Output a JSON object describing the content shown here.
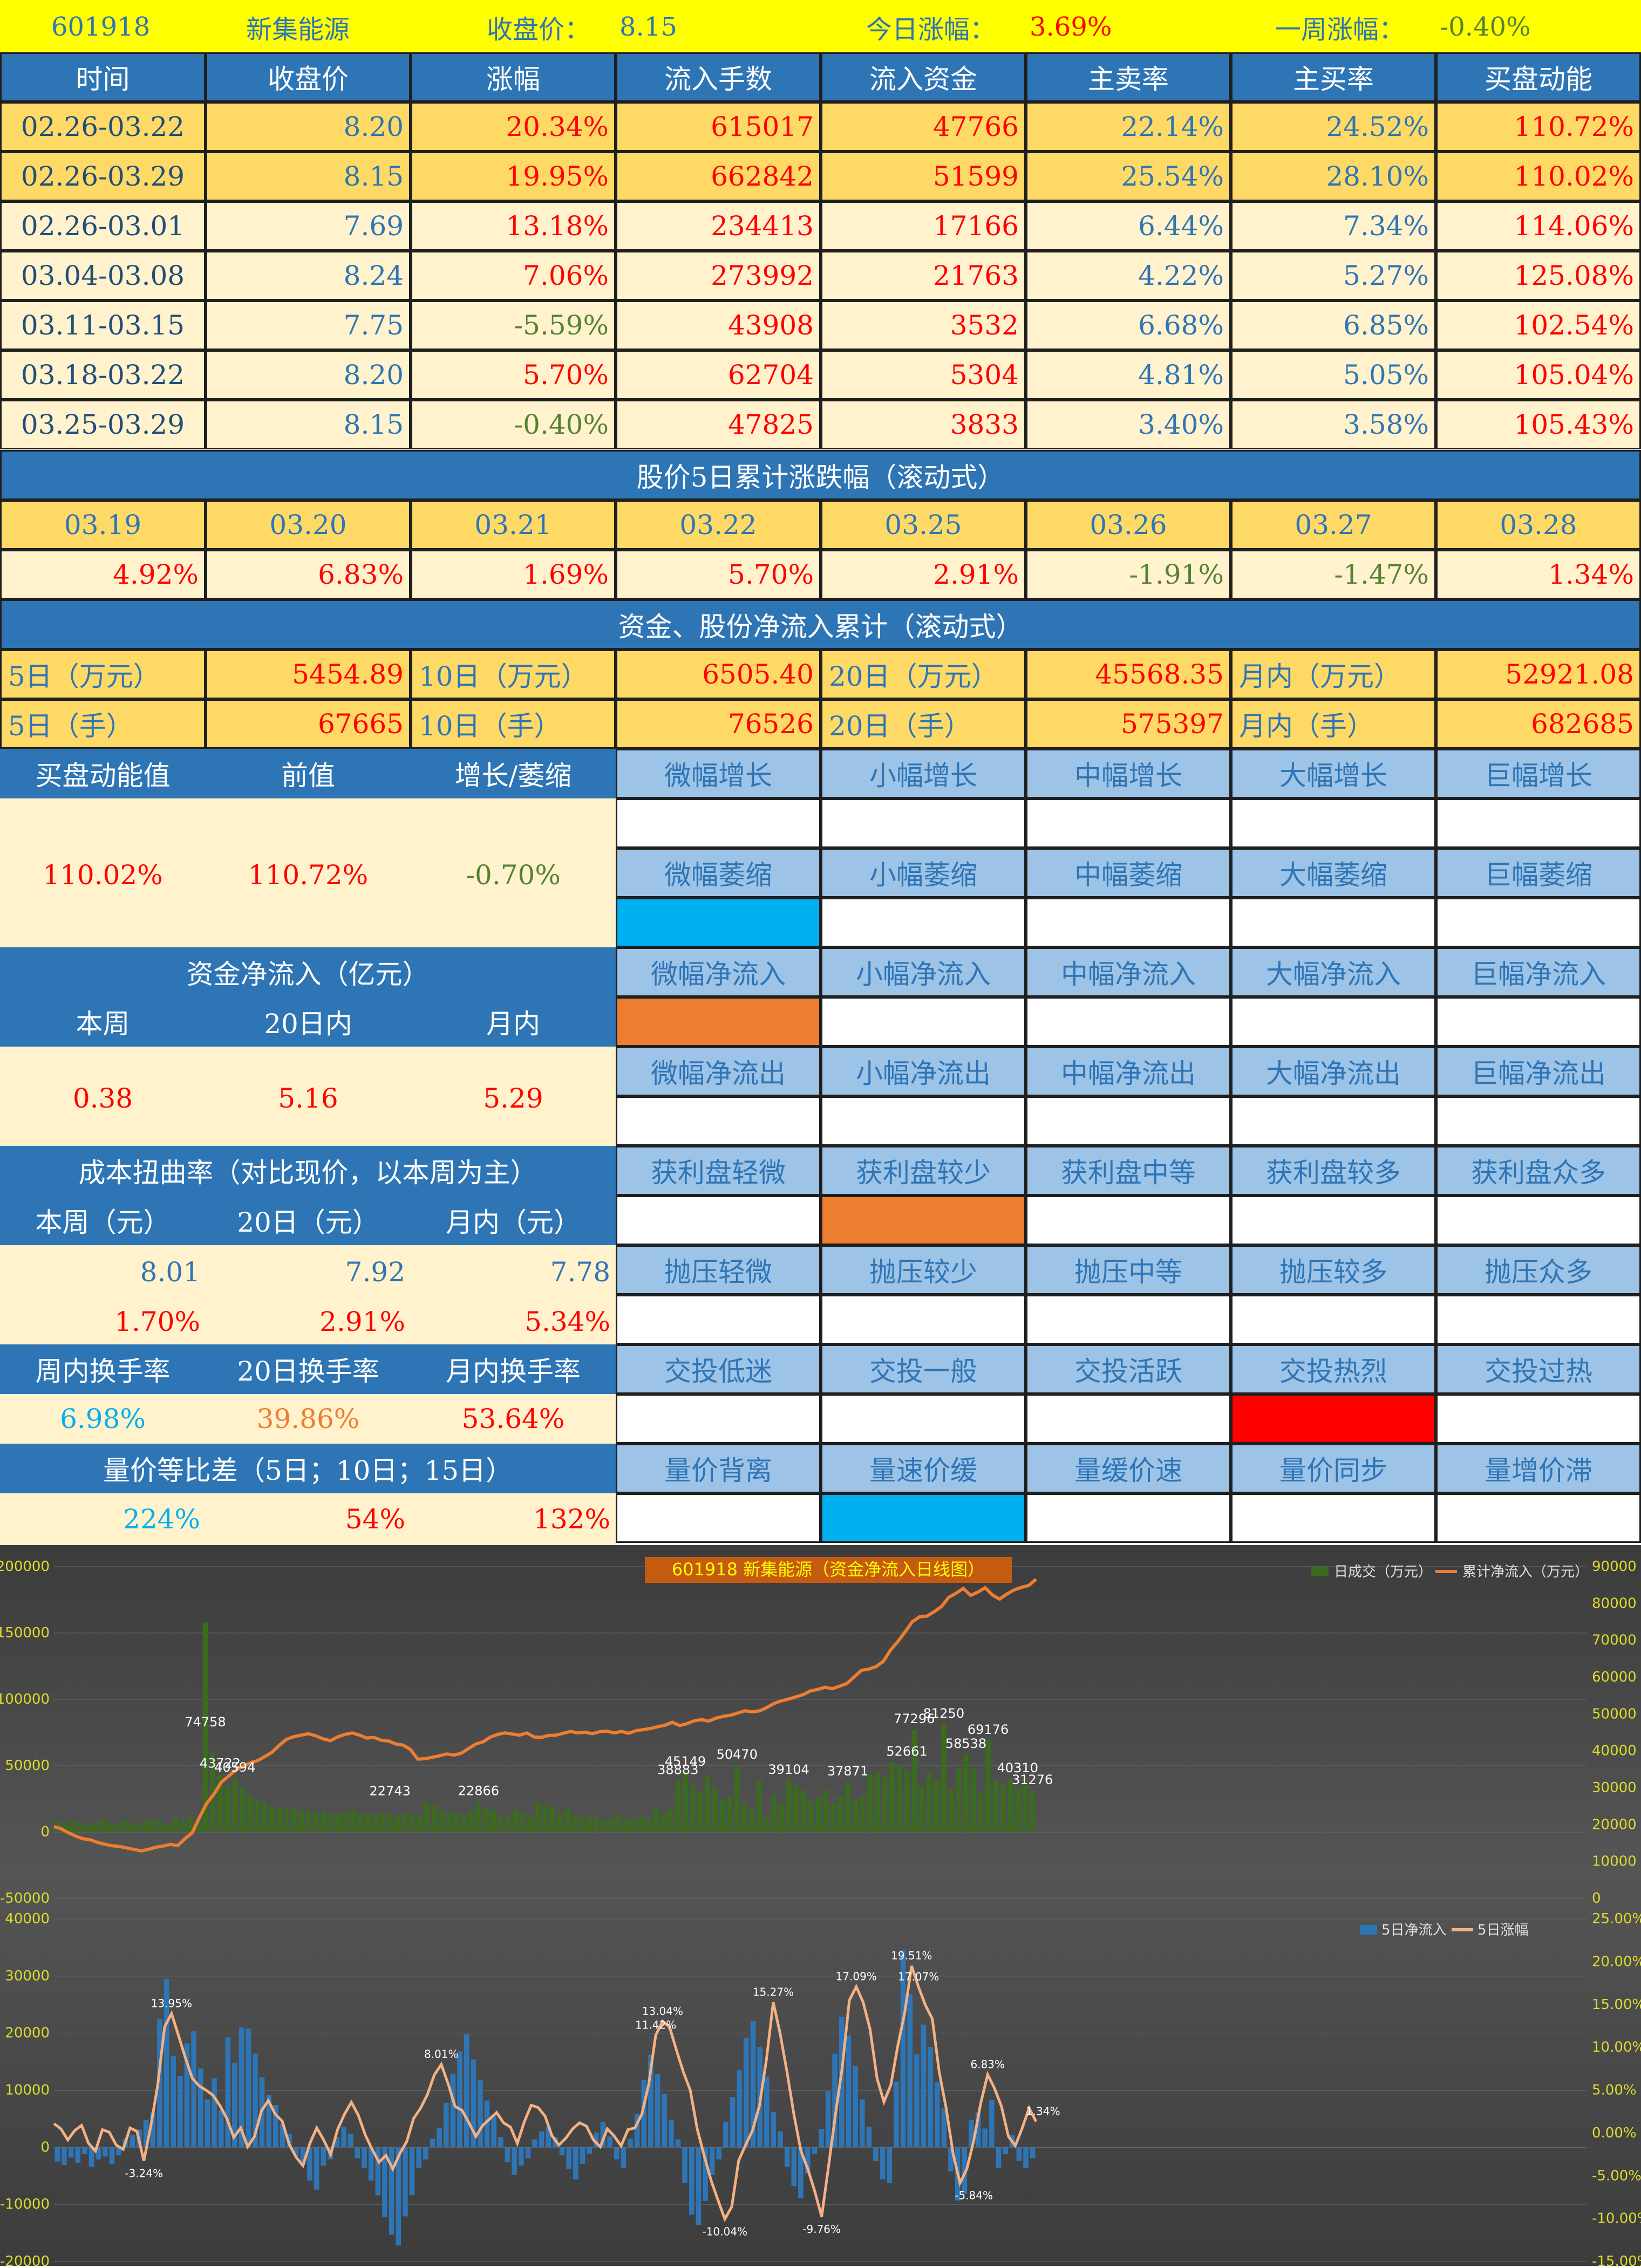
{
  "header": {
    "code": "601918",
    "name": "新集能源",
    "close_label": "收盘价：",
    "close_value": "8.15",
    "today_label": "今日涨幅：",
    "today_value": "3.69%",
    "week_label": "一周涨幅：",
    "week_value": "-0.40%"
  },
  "main_table": {
    "columns": [
      "时间",
      "收盘价",
      "涨幅",
      "流入手数",
      "流入资金",
      "主卖率",
      "主买率",
      "买盘动能"
    ],
    "rows": [
      [
        "02.26-03.22",
        "8.20",
        "20.34%",
        "615017",
        "47766",
        "22.14%",
        "24.52%",
        "110.72%"
      ],
      [
        "02.26-03.29",
        "8.15",
        "19.95%",
        "662842",
        "51599",
        "25.54%",
        "28.10%",
        "110.02%"
      ],
      [
        "02.26-03.01",
        "7.69",
        "13.18%",
        "234413",
        "17166",
        "6.44%",
        "7.34%",
        "114.06%"
      ],
      [
        "03.04-03.08",
        "8.24",
        "7.06%",
        "273992",
        "21763",
        "4.22%",
        "5.27%",
        "125.08%"
      ],
      [
        "03.11-03.15",
        "7.75",
        "-5.59%",
        "43908",
        "3532",
        "6.68%",
        "6.85%",
        "102.54%"
      ],
      [
        "03.18-03.22",
        "8.20",
        "5.70%",
        "62704",
        "5304",
        "4.81%",
        "5.05%",
        "105.04%"
      ],
      [
        "03.25-03.29",
        "8.15",
        "-0.40%",
        "47825",
        "3833",
        "3.40%",
        "3.58%",
        "105.43%"
      ]
    ]
  },
  "rolling5": {
    "title": "股价5日累计涨跌幅（滚动式）",
    "dates": [
      "03.19",
      "03.20",
      "03.21",
      "03.22",
      "03.25",
      "03.26",
      "03.27",
      "03.28"
    ],
    "values": [
      "4.92%",
      "6.83%",
      "1.69%",
      "5.70%",
      "2.91%",
      "-1.91%",
      "-1.47%",
      "1.34%"
    ]
  },
  "netflow": {
    "title": "资金、股份净流入累计（滚动式）",
    "row1": [
      "5日（万元）",
      "5454.89",
      "10日（万元）",
      "6505.40",
      "20日（万元）",
      "45568.35",
      "月内（万元）",
      "52921.08"
    ],
    "row2": [
      "5日（手）",
      "67665",
      "10日（手）",
      "76526",
      "20日（手）",
      "575397",
      "月内（手）",
      "682685"
    ]
  },
  "buy_energy": {
    "headers": [
      "买盘动能值",
      "前值",
      "增长/萎缩"
    ],
    "values": [
      "110.02%",
      "110.72%",
      "-0.70%"
    ],
    "grow_labels": [
      "微幅增长",
      "小幅增长",
      "中幅增长",
      "大幅增长",
      "巨幅增长"
    ],
    "shrink_labels": [
      "微幅萎缩",
      "小幅萎缩",
      "中幅萎缩",
      "大幅萎缩",
      "巨幅萎缩"
    ]
  },
  "fund_netflow": {
    "title": "资金净流入（亿元）",
    "headers": [
      "本周",
      "20日内",
      "月内"
    ],
    "values": [
      "0.38",
      "5.16",
      "5.29"
    ],
    "in_labels": [
      "微幅净流入",
      "小幅净流入",
      "中幅净流入",
      "大幅净流入",
      "巨幅净流入"
    ],
    "out_labels": [
      "微幅净流出",
      "小幅净流出",
      "中幅净流出",
      "大幅净流出",
      "巨幅净流出"
    ]
  },
  "cost": {
    "title": "成本扭曲率（对比现价，以本周为主）",
    "headers": [
      "本周（元）",
      "20日（元）",
      "月内（元）"
    ],
    "prices": [
      "8.01",
      "7.92",
      "7.78"
    ],
    "rates": [
      "1.70%",
      "2.91%",
      "5.34%"
    ],
    "profit_labels": [
      "获利盘轻微",
      "获利盘较少",
      "获利盘中等",
      "获利盘较多",
      "获利盘众多"
    ],
    "pressure_labels": [
      "抛压轻微",
      "抛压较少",
      "抛压中等",
      "抛压较多",
      "抛压众多"
    ]
  },
  "turnover": {
    "headers": [
      "周内换手率",
      "20日换手率",
      "月内换手率"
    ],
    "values": [
      "6.98%",
      "39.86%",
      "53.64%"
    ],
    "activity_labels": [
      "交投低迷",
      "交投一般",
      "交投活跃",
      "交投热烈",
      "交投过热"
    ]
  },
  "volprice": {
    "title": "量价等比差（5日；10日；15日）",
    "values": [
      "224%",
      "54%",
      "132%"
    ],
    "state_labels": [
      "量价背离",
      "量速价缓",
      "量缓价速",
      "量价同步",
      "量增价滞"
    ]
  },
  "indicators": {
    "shrink_active": 0,
    "inflow_active": 0,
    "profit_active": 1,
    "activity_active": 3,
    "volprice_active": 1,
    "colors": {
      "blue": "#00b0f0",
      "orange": "#ed7d31",
      "red": "#ff0000"
    }
  },
  "chart_data": [
    {
      "type": "bar",
      "title": "601918 新集能源（资金净流入日线图）",
      "legend": [
        "日成交（万元）",
        "累计净流入（万元）"
      ],
      "legend_position": "top-right",
      "y_left_ticks": [
        "200000",
        "150000",
        "100000",
        "50000",
        "0",
        "-50000"
      ],
      "y_right_ticks": [
        "90000",
        "80000",
        "70000",
        "60000",
        "50000",
        "40000",
        "30000",
        "20000",
        "10000",
        "0"
      ],
      "ylim_left": [
        -50000,
        200000
      ],
      "ylim_right": [
        0,
        90000
      ],
      "series": [
        {
          "name": "日成交（万元）",
          "values": [
            8200,
            6900,
            9100,
            7600,
            5800,
            6700,
            9800,
            7200,
            6400,
            8800,
            7300,
            6100,
            8900,
            9500,
            7700,
            6200,
            10800,
            9400,
            12300,
            9900,
            158000,
            60000,
            43722,
            35425,
            40594,
            33468,
            27850,
            24300,
            22881,
            19550,
            18200,
            16900,
            17800,
            15900,
            16300,
            14800,
            15600,
            14200,
            13900,
            15400,
            16800,
            14100,
            13500,
            12900,
            14400,
            13800,
            12600,
            14900,
            13100,
            12800,
            22743,
            19800,
            16400,
            15100,
            14600,
            12262,
            15800,
            22866,
            18200,
            16500,
            12400,
            10700,
            16700,
            14200,
            11900,
            22548,
            20100,
            18600,
            14500,
            17200,
            12800,
            11700,
            10900,
            11500,
            9200,
            10100,
            12400,
            9800,
            10500,
            11200,
            9600,
            18600,
            14146,
            17300,
            38883,
            45149,
            35794,
            29958,
            42391,
            33116,
            23868,
            26861,
            50470,
            20974,
            16800,
            39083,
            12073,
            27673,
            21300,
            39104,
            35491,
            31553,
            23100,
            26595,
            31888,
            21667,
            27055,
            37871,
            24549,
            27058,
            43270,
            44854,
            41603,
            52661,
            50400,
            46300,
            77296,
            34508,
            44364,
            40200,
            81250,
            31983,
            48028,
            58538,
            48187,
            29767,
            69176,
            39400,
            36200,
            40310,
            33506,
            40267,
            31276
          ]
        },
        {
          "name": "累计净流入（万元）",
          "values": [
            19500,
            18900,
            17800,
            16900,
            16200,
            15900,
            15200,
            14700,
            14300,
            14100,
            13700,
            13300,
            12900,
            13300,
            13900,
            14200,
            14700,
            14300,
            16200,
            17800,
            22000,
            25800,
            28300,
            31500,
            33200,
            34800,
            35900,
            36800,
            37400,
            38500,
            39700,
            41600,
            43200,
            43900,
            44300,
            44700,
            44100,
            43300,
            42800,
            43800,
            44500,
            44900,
            44300,
            43500,
            43700,
            42900,
            42700,
            41900,
            41600,
            40400,
            37800,
            37900,
            38300,
            38700,
            39200,
            38900,
            39400,
            40700,
            41900,
            42500,
            43800,
            44500,
            44900,
            44600,
            44300,
            44900,
            43800,
            43700,
            44200,
            44300,
            44800,
            45300,
            44900,
            45100,
            44700,
            45200,
            45400,
            44900,
            45300,
            44800,
            45500,
            45800,
            46100,
            46600,
            47000,
            47800,
            46900,
            47400,
            48200,
            48500,
            48100,
            48900,
            49400,
            49700,
            50300,
            50900,
            50600,
            50900,
            51800,
            52900,
            53600,
            54100,
            54700,
            55300,
            56300,
            56700,
            57300,
            56900,
            57600,
            58300,
            60100,
            61900,
            62200,
            62900,
            64300,
            67400,
            69700,
            72300,
            75100,
            76400,
            76600,
            77800,
            79200,
            81700,
            82800,
            84100,
            82200,
            83100,
            84300,
            82300,
            81200,
            82600,
            83700,
            84400,
            84900,
            86600
          ]
        }
      ]
    },
    {
      "type": "bar",
      "title": "",
      "legend": [
        "5日净流入",
        "5日涨幅"
      ],
      "legend_position": "top-right",
      "y_left_ticks": [
        "40000",
        "30000",
        "20000",
        "10000",
        "0",
        "-10000",
        "-20000"
      ],
      "y_right_ticks": [
        "25.00%",
        "20.00%",
        "15.00%",
        "10.00%",
        "5.00%",
        "0.00%",
        "-5.00%",
        "-10.00%",
        "-15.00%"
      ],
      "ylim_left": [
        -20000,
        40000
      ],
      "ylim_right": [
        -15,
        25
      ],
      "series": [
        {
          "name": "5日净流入",
          "values": [
            -2500,
            -3100,
            -1800,
            -2700,
            -1200,
            -3400,
            -2100,
            -1600,
            -2900,
            -1400,
            1500,
            2200,
            3100,
            4800,
            6200,
            22500,
            29500,
            16000,
            12500,
            18200,
            20400,
            13800,
            8400,
            12100,
            6500,
            19300,
            14800,
            21000,
            20800,
            16400,
            12300,
            9200,
            7400,
            4100,
            2300,
            -1500,
            -3100,
            -5800,
            -7400,
            -3200,
            -2100,
            1800,
            3600,
            2400,
            -1900,
            -3600,
            -5800,
            -8400,
            -12200,
            -15300,
            -17200,
            -12100,
            -8400,
            -3600,
            -2100,
            1500,
            3400,
            7800,
            12900,
            16800,
            19800,
            15400,
            11800,
            8200,
            5400,
            1800,
            -2600,
            -4800,
            -3200,
            -1900,
            1400,
            2800,
            3600,
            1800,
            -1400,
            -3800,
            -5600,
            -2900,
            -1100,
            2600,
            4400,
            1900,
            -2100,
            -3600,
            1500,
            5900,
            11800,
            16200,
            12800,
            9400,
            4800,
            1400,
            -6200,
            -11800,
            -13600,
            -9400,
            -4800,
            -2100,
            4500,
            8800,
            13500,
            19200,
            22100,
            17600,
            12400,
            6200,
            2800,
            -3400,
            -6800,
            -8900,
            -4600,
            -1200,
            3200,
            9800,
            16400,
            22800,
            19600,
            14200,
            8400,
            3600,
            -2400,
            -5600,
            -6300,
            11500,
            34500,
            26800,
            16300,
            21500,
            17600,
            11400,
            6800,
            -4200,
            -9300,
            -8100,
            4800,
            6200,
            3300,
            8300,
            -3600,
            -1200,
            2100,
            -2400,
            -3600,
            -1900
          ]
        },
        {
          "name": "5日涨幅",
          "values": [
            1.1,
            0.5,
            -0.8,
            0.3,
            0.9,
            -1.2,
            -2.1,
            0.4,
            0.1,
            -1.4,
            -1.9,
            0.6,
            0.2,
            -3.24,
            0.8,
            5.6,
            12.4,
            13.95,
            11.4,
            8.8,
            6.4,
            5.5,
            5.0,
            4.4,
            3.2,
            1.7,
            -0.5,
            0.6,
            -1.6,
            -0.4,
            2.6,
            3.8,
            2.2,
            1.4,
            -1.3,
            -2.8,
            -3.8,
            -1.2,
            0.6,
            -0.8,
            -2.5,
            0.4,
            2.2,
            3.6,
            2.1,
            -0.2,
            -1.9,
            -3.4,
            -2.6,
            -4.2,
            -2.4,
            -1.0,
            1.7,
            2.9,
            4.5,
            6.8,
            8.01,
            5.74,
            3.11,
            2.65,
            1.2,
            -0.4,
            0.9,
            1.64,
            2.4,
            1.2,
            0.7,
            -1.2,
            1.3,
            3.25,
            2.98,
            1.98,
            -0.3,
            -1.4,
            -0.6,
            0.5,
            1.2,
            0.8,
            -0.8,
            -1.6,
            0.5,
            -0.35,
            -1.5,
            0.4,
            0.6,
            2.2,
            5.7,
            11.42,
            13.04,
            12.4,
            9.7,
            7.12,
            5.01,
            0.5,
            -2.6,
            -5.5,
            -7.81,
            -10.04,
            -8.6,
            -3.2,
            -1.4,
            0.3,
            3.2,
            8.52,
            15.27,
            11.59,
            7.08,
            2.1,
            -2.08,
            -4.2,
            -6.8,
            -9.76,
            -3.83,
            2.2,
            7.8,
            15.5,
            17.09,
            15.27,
            12.1,
            6.4,
            3.64,
            5.61,
            10.17,
            14.02,
            19.51,
            17.07,
            14.92,
            13.34,
            7.1,
            2.9,
            -2.4,
            -5.84,
            -4.16,
            -0.84,
            3.5,
            6.83,
            5.2,
            3.1,
            -0.4,
            -1.47,
            0.6,
            2.91,
            1.34
          ]
        }
      ]
    }
  ]
}
